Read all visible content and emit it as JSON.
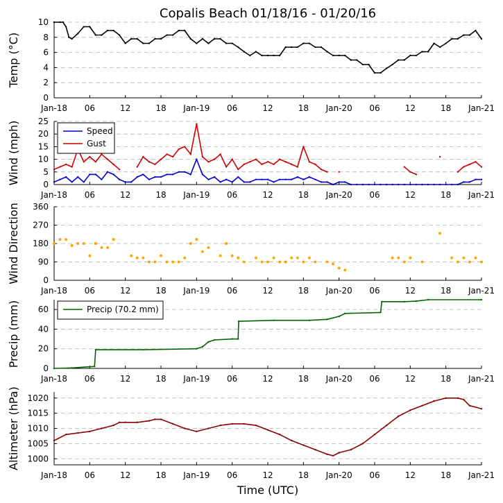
{
  "chart_data": [
    {
      "id": "temp",
      "type": "line",
      "title": "Copalis Beach 01/18/16 - 01/20/16",
      "ylabel": "Temp (°C)",
      "ylim": [
        0,
        10
      ],
      "yticks": [
        0,
        2,
        4,
        6,
        8,
        10
      ],
      "series": [
        {
          "name": "Temp",
          "color": "#000000",
          "x": [
            0,
            1,
            1.5,
            2,
            2.5,
            3,
            4,
            5,
            6,
            7,
            8,
            9,
            10,
            11,
            12,
            13,
            14,
            15,
            16,
            17,
            18,
            19,
            20,
            21,
            22,
            23,
            24,
            25,
            26,
            27,
            28,
            29,
            30,
            31,
            32,
            33,
            34,
            35,
            36,
            37,
            38,
            39,
            40,
            41,
            42,
            43,
            44,
            45,
            46,
            47,
            48,
            49,
            50,
            51,
            52,
            53,
            54,
            55,
            56,
            57,
            58,
            59,
            60,
            61,
            62,
            63,
            64,
            65,
            66,
            67,
            68,
            69,
            70,
            71,
            72
          ],
          "y": [
            10,
            10,
            10,
            9.4,
            8,
            7.8,
            8.5,
            9.4,
            9.4,
            8.3,
            8.3,
            8.9,
            8.9,
            8.3,
            7.2,
            7.8,
            7.8,
            7.2,
            7.2,
            7.8,
            7.8,
            8.3,
            8.3,
            8.9,
            8.9,
            7.8,
            7.2,
            7.8,
            7.2,
            7.8,
            7.8,
            7.2,
            7.2,
            6.7,
            6.1,
            5.6,
            6.1,
            5.6,
            5.6,
            5.6,
            5.6,
            6.7,
            6.7,
            6.7,
            7.2,
            7.2,
            6.7,
            6.7,
            6.1,
            5.6,
            5.6,
            5.6,
            5,
            5,
            4.4,
            4.4,
            3.3,
            3.3,
            3.9,
            4.4,
            5,
            5,
            5.6,
            5.6,
            6.1,
            6.1,
            7.2,
            6.7,
            7.2,
            7.8,
            7.8,
            8.3,
            8.3,
            8.9,
            7.8
          ]
        }
      ],
      "x_tick_labels": [
        "Jan-18",
        "06",
        "12",
        "18",
        "Jan-19",
        "06",
        "12",
        "18",
        "Jan-20",
        "06",
        "12",
        "18",
        "Jan-21"
      ]
    },
    {
      "id": "wind",
      "type": "line",
      "ylabel": "Wind (mph)",
      "ylim": [
        0,
        25
      ],
      "yticks": [
        0,
        5,
        10,
        15,
        20,
        25
      ],
      "legend_loc": "top-left",
      "series": [
        {
          "name": "Speed",
          "color": "#0000cc",
          "x": [
            0,
            1,
            2,
            3,
            4,
            5,
            6,
            7,
            8,
            9,
            10,
            11,
            12,
            13,
            14,
            15,
            16,
            17,
            18,
            19,
            20,
            21,
            22,
            23,
            24,
            25,
            26,
            27,
            28,
            29,
            30,
            31,
            32,
            33,
            34,
            35,
            36,
            37,
            38,
            39,
            40,
            41,
            42,
            43,
            44,
            45,
            46,
            47,
            48,
            49,
            50,
            51,
            52,
            53,
            54,
            55,
            56,
            57,
            58,
            59,
            60,
            61,
            62,
            63,
            64,
            65,
            66,
            67,
            68,
            69,
            70,
            71,
            72
          ],
          "y": [
            1,
            2,
            3,
            1,
            3,
            1,
            4,
            4,
            2,
            5,
            4,
            2,
            1,
            1,
            3,
            4,
            2,
            3,
            3,
            4,
            4,
            5,
            5,
            4,
            10,
            4,
            2,
            3,
            1,
            2,
            1,
            3,
            1,
            1,
            2,
            2,
            2,
            1,
            2,
            2,
            2,
            3,
            2,
            3,
            2,
            1,
            1,
            0,
            1,
            1,
            0,
            0,
            0,
            0,
            0,
            0,
            0,
            0,
            0,
            0,
            0,
            0,
            0,
            0,
            0,
            0,
            0,
            0,
            0,
            1,
            1,
            2,
            2
          ]
        },
        {
          "name": "Gust",
          "color": "#cc0000",
          "x": [
            0,
            1,
            2,
            3,
            4,
            5,
            6,
            7,
            8,
            9,
            10,
            11,
            12,
            13,
            14,
            15,
            16,
            17,
            18,
            19,
            20,
            21,
            22,
            23,
            24,
            25,
            26,
            27,
            28,
            29,
            30,
            31,
            32,
            33,
            34,
            35,
            36,
            37,
            38,
            39,
            40,
            41,
            42,
            43,
            44,
            45,
            46,
            47,
            48,
            49,
            50,
            51,
            52,
            53,
            54,
            55,
            56,
            57,
            58,
            59,
            60,
            61,
            62,
            63,
            64,
            65,
            66,
            67,
            68,
            69,
            70,
            71,
            72
          ],
          "y": [
            6,
            7,
            8,
            7,
            14,
            9,
            11,
            9,
            12,
            10,
            8,
            6,
            null,
            null,
            7,
            11,
            9,
            8,
            10,
            12,
            11,
            14,
            15,
            12,
            24,
            11,
            9,
            10,
            12,
            7,
            10,
            6,
            8,
            9,
            10,
            8,
            9,
            8,
            10,
            9,
            8,
            7,
            15,
            9,
            8,
            6,
            5,
            null,
            5,
            null,
            null,
            null,
            null,
            null,
            null,
            null,
            null,
            null,
            null,
            7,
            5,
            4,
            null,
            null,
            null,
            11,
            null,
            null,
            5,
            7,
            8,
            9,
            7
          ]
        }
      ],
      "x_tick_labels": [
        "Jan-18",
        "06",
        "12",
        "18",
        "Jan-19",
        "06",
        "12",
        "18",
        "Jan-20",
        "06",
        "12",
        "18",
        "Jan-21"
      ]
    },
    {
      "id": "winddir",
      "type": "scatter",
      "ylabel": "Wind Direction",
      "ylim": [
        0,
        360
      ],
      "yticks": [
        0,
        90,
        180,
        270,
        360
      ],
      "series": [
        {
          "name": "Direction",
          "color": "#ffa500",
          "x": [
            0,
            1,
            2,
            3,
            4,
            5,
            6,
            7,
            8,
            9,
            10,
            13,
            14,
            15,
            16,
            17,
            18,
            19,
            20,
            21,
            22,
            23,
            24,
            25,
            26,
            28,
            29,
            30,
            31,
            32,
            34,
            35,
            36,
            37,
            38,
            39,
            40,
            41,
            42,
            43,
            44,
            46,
            47,
            48,
            49,
            57,
            58,
            59,
            60,
            62,
            65,
            67,
            68,
            69,
            70,
            71,
            72
          ],
          "y": [
            180,
            200,
            200,
            170,
            180,
            180,
            120,
            180,
            160,
            160,
            200,
            120,
            110,
            110,
            90,
            90,
            120,
            90,
            90,
            90,
            110,
            180,
            200,
            140,
            160,
            120,
            180,
            120,
            110,
            90,
            110,
            90,
            90,
            110,
            90,
            90,
            110,
            110,
            90,
            110,
            90,
            90,
            80,
            60,
            50,
            110,
            110,
            90,
            110,
            90,
            230,
            110,
            90,
            110,
            90,
            110,
            90
          ]
        }
      ],
      "x_tick_labels": [
        "Jan-18",
        "06",
        "12",
        "18",
        "Jan-19",
        "06",
        "12",
        "18",
        "Jan-20",
        "06",
        "12",
        "18",
        "Jan-21"
      ]
    },
    {
      "id": "precip",
      "type": "line",
      "ylabel": "Precip (mm)",
      "ylim": [
        0,
        70
      ],
      "yticks": [
        0,
        20,
        40,
        60
      ],
      "legend_loc": "top-left",
      "series": [
        {
          "name": "Precip (70.2 mm)",
          "color": "#006400",
          "x": [
            0,
            3,
            6.8,
            7,
            15,
            24,
            25,
            26,
            27,
            30,
            31,
            31.1,
            37,
            43,
            46,
            48,
            49,
            55,
            55.2,
            59,
            61,
            63,
            72
          ],
          "y": [
            0,
            0.5,
            2,
            19,
            19,
            20,
            22,
            27,
            29,
            30,
            30,
            48,
            49,
            49,
            50,
            53,
            56,
            57,
            68,
            68,
            68.5,
            70,
            70
          ]
        }
      ],
      "x_tick_labels": [
        "Jan-18",
        "06",
        "12",
        "18",
        "Jan-19",
        "06",
        "12",
        "18",
        "Jan-20",
        "06",
        "12",
        "18",
        "Jan-21"
      ]
    },
    {
      "id": "altimeter",
      "type": "line",
      "ylabel": "Altimeter (hPa)",
      "xlabel": "Time (UTC)",
      "ylim": [
        998,
        1022
      ],
      "yticks": [
        1000,
        1005,
        1010,
        1015,
        1020
      ],
      "series": [
        {
          "name": "Altimeter",
          "color": "#8b0000",
          "x": [
            0,
            2,
            4,
            6,
            8,
            10,
            11,
            12,
            14,
            16,
            17,
            18,
            20,
            22,
            24,
            26,
            28,
            30,
            32,
            34,
            36,
            38,
            40,
            42,
            44,
            46,
            47,
            48,
            50,
            52,
            54,
            56,
            58,
            60,
            62,
            64,
            66,
            68,
            69,
            70,
            72
          ],
          "y": [
            1006,
            1008,
            1008.5,
            1009,
            1010,
            1011,
            1012,
            1012,
            1012,
            1012.5,
            1013,
            1013,
            1011.5,
            1010,
            1009,
            1010,
            1011,
            1011.5,
            1011.5,
            1011,
            1009.5,
            1008,
            1006,
            1004.5,
            1003,
            1001.5,
            1001,
            1002,
            1003,
            1005,
            1008,
            1011,
            1014,
            1016,
            1017.5,
            1019,
            1020,
            1020,
            1019.5,
            1017.5,
            1016.5
          ]
        }
      ],
      "x_tick_labels": [
        "Jan-18",
        "06",
        "12",
        "18",
        "Jan-19",
        "06",
        "12",
        "18",
        "Jan-20",
        "06",
        "12",
        "18",
        "Jan-21"
      ]
    }
  ]
}
